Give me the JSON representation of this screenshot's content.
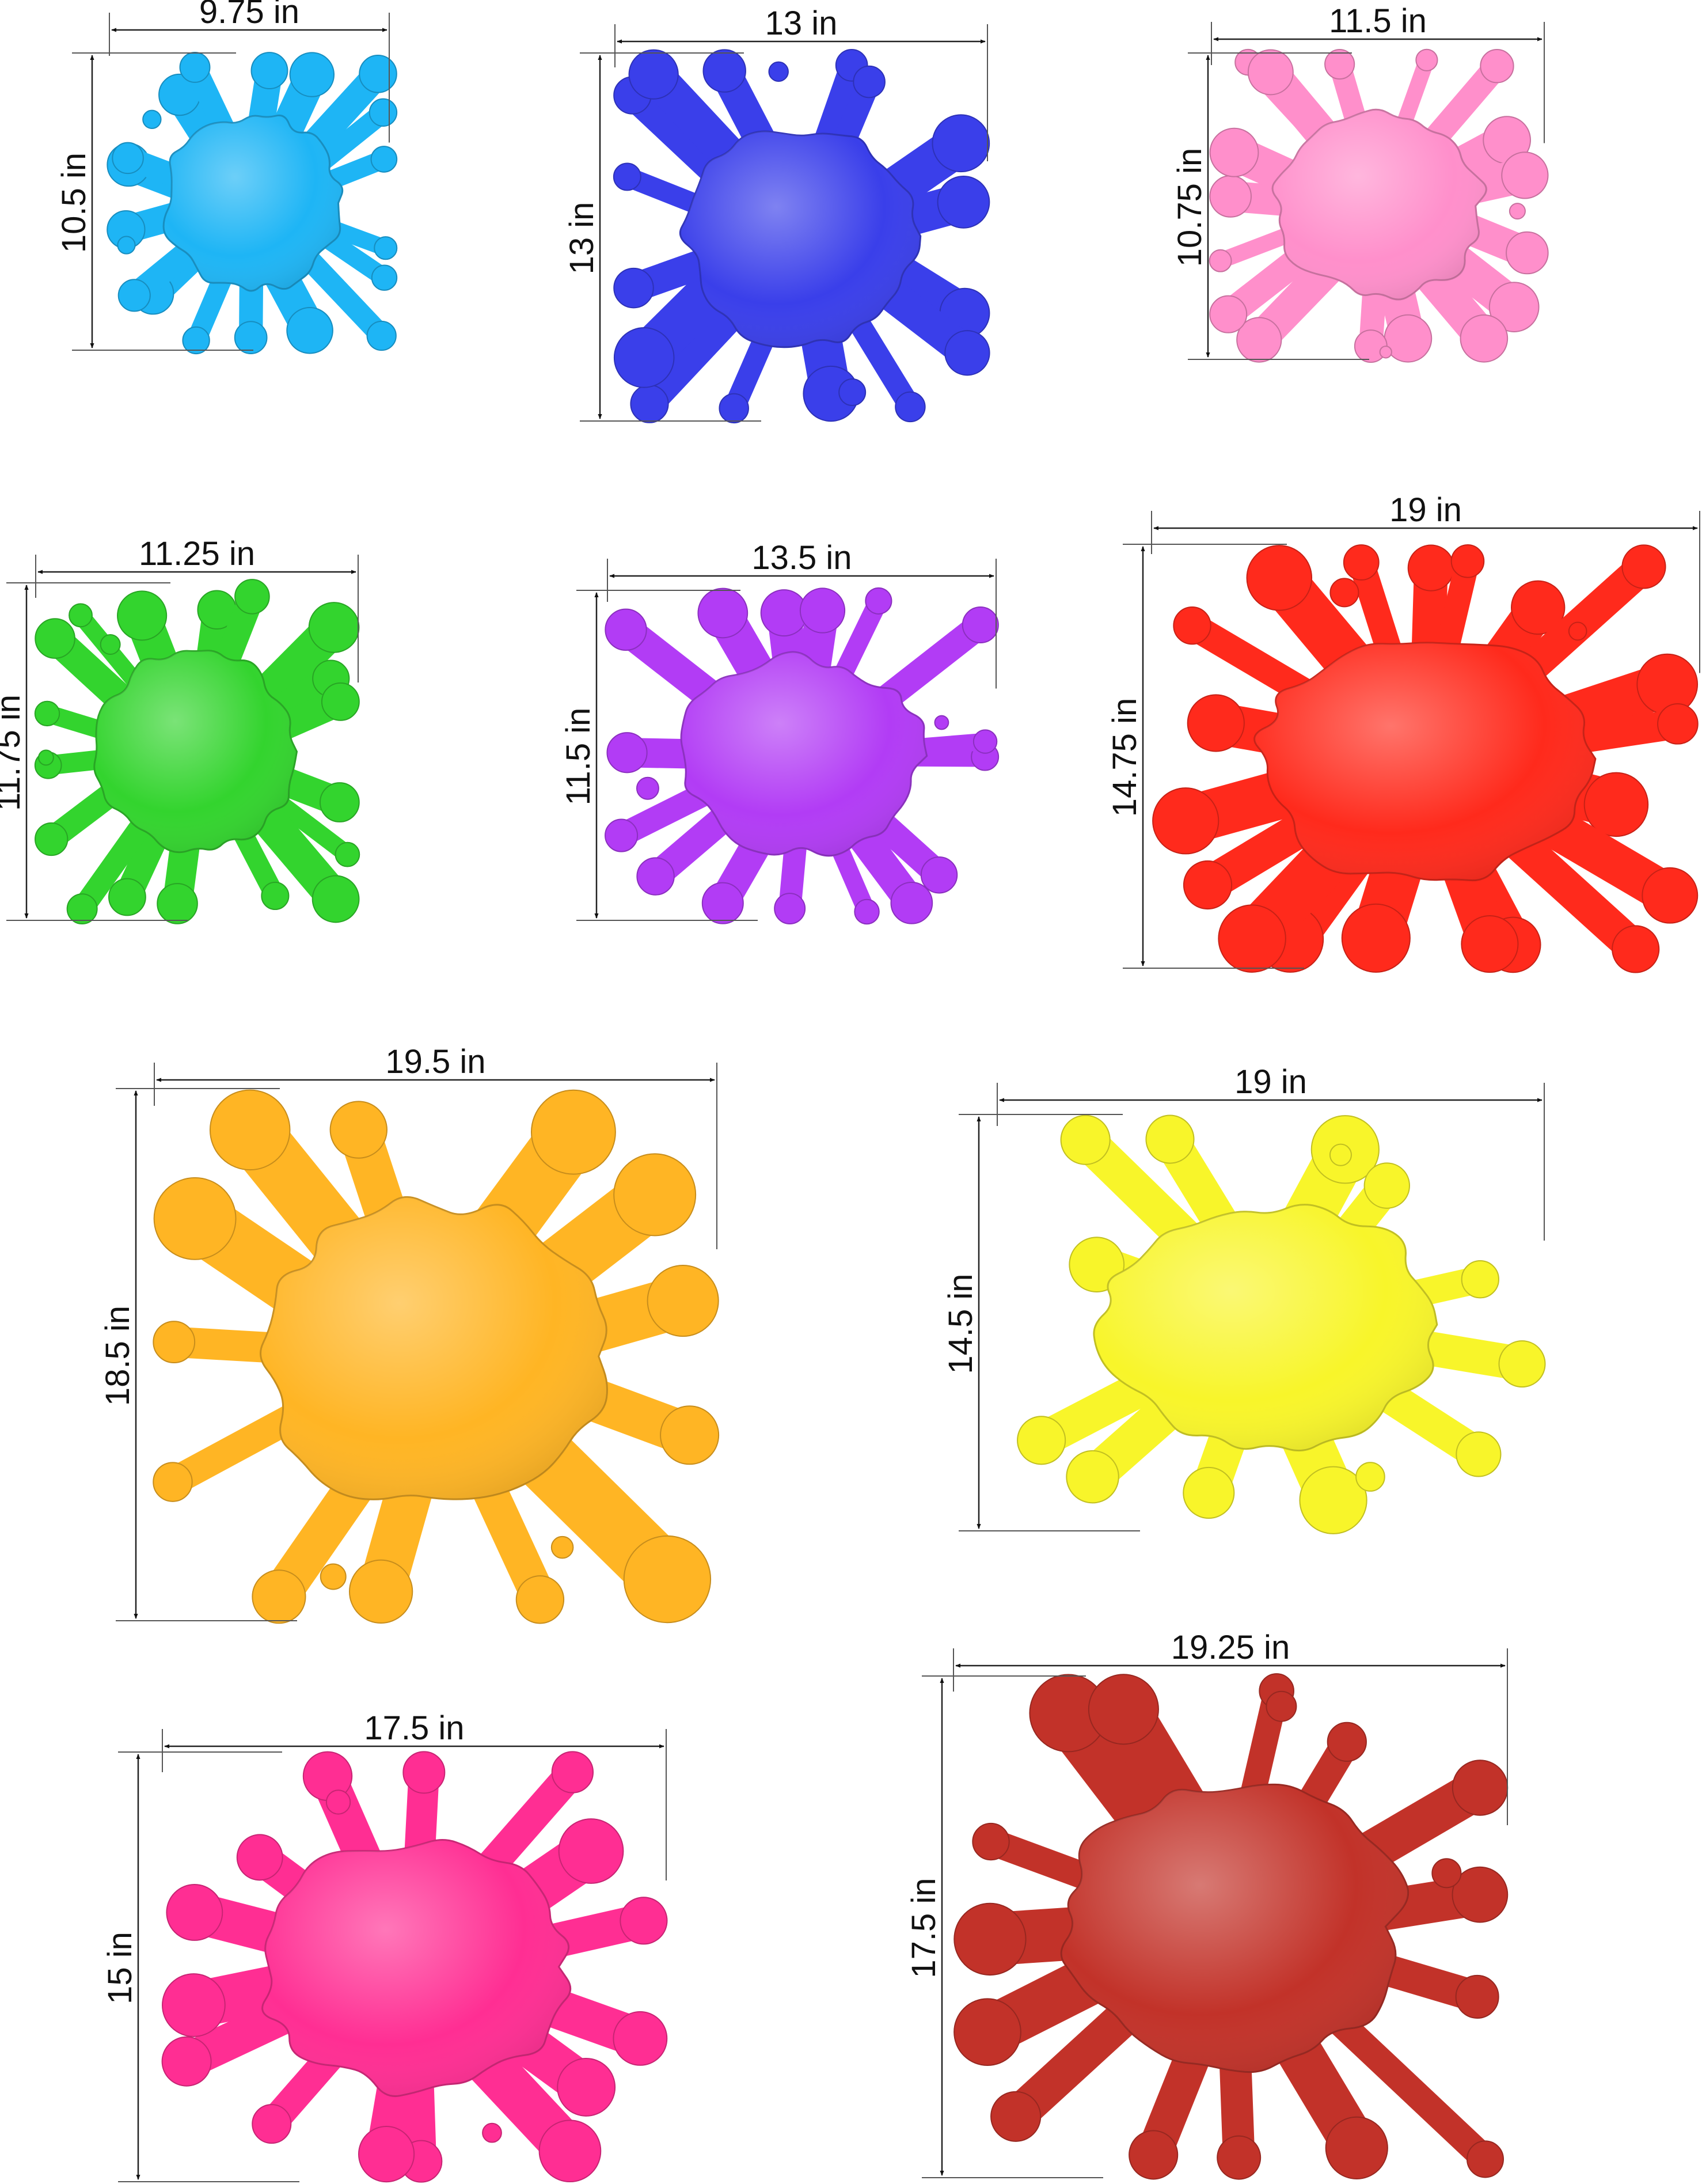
{
  "splats": [
    {
      "id": "cyan",
      "width_label": "9.75 in",
      "height_label": "10.5 in",
      "color": "#1EB5F5"
    },
    {
      "id": "blue",
      "width_label": "13 in",
      "height_label": "13 in",
      "color": "#3A3FEA"
    },
    {
      "id": "pink",
      "width_label": "11.5 in",
      "height_label": "10.75 in",
      "color": "#FF8FCB"
    },
    {
      "id": "green",
      "width_label": "11.25 in",
      "height_label": "11.75 in",
      "color": "#33D42E"
    },
    {
      "id": "purple",
      "width_label": "13.5 in",
      "height_label": "11.5 in",
      "color": "#B23CF5"
    },
    {
      "id": "red",
      "width_label": "19 in",
      "height_label": "14.75 in",
      "color": "#FF2A1C"
    },
    {
      "id": "orange",
      "width_label": "19.5 in",
      "height_label": "18.5 in",
      "color": "#FFB524"
    },
    {
      "id": "yellow",
      "width_label": "19 in",
      "height_label": "14.5 in",
      "color": "#F8F52A"
    },
    {
      "id": "magenta",
      "width_label": "17.5 in",
      "height_label": "15 in",
      "color": "#FF2E93"
    },
    {
      "id": "brick",
      "width_label": "19.25 in",
      "height_label": "17.5 in",
      "color": "#C23229"
    }
  ]
}
